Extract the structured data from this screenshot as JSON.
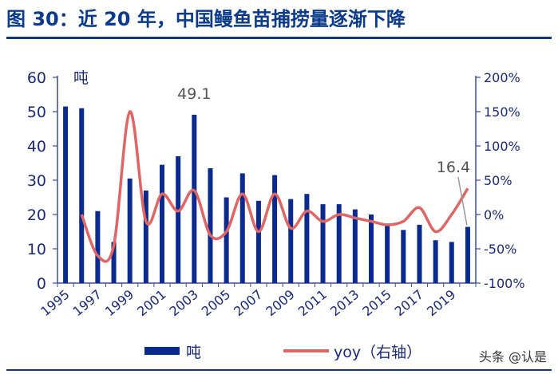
{
  "title": "图 30：近 20 年，中国鳗鱼苗捕捞量逐渐下降",
  "watermark": "头条 @认是",
  "colors": {
    "bar": "#0a2a8f",
    "line": "#e06666",
    "axis": "#3a4aa0",
    "title": "#0a3a8c"
  },
  "chart_data": {
    "type": "bar",
    "left_axis_unit": "吨",
    "ylim_left": [
      0,
      60
    ],
    "yticks_left": [
      0,
      10,
      20,
      30,
      40,
      50,
      60
    ],
    "ylim_right": [
      -100,
      200
    ],
    "yticks_right": [
      "-100%",
      "-50%",
      "0%",
      "50%",
      "100%",
      "150%",
      "200%"
    ],
    "yticks_right_values": [
      -100,
      -50,
      0,
      50,
      100,
      150,
      200
    ],
    "x": [
      1995,
      1996,
      1997,
      1998,
      1999,
      2000,
      2001,
      2002,
      2003,
      2004,
      2005,
      2006,
      2007,
      2008,
      2009,
      2010,
      2011,
      2012,
      2013,
      2014,
      2015,
      2016,
      2017,
      2018,
      2019,
      2020
    ],
    "xtick_labels": [
      "1995",
      "1997",
      "1999",
      "2001",
      "2003",
      "2005",
      "2007",
      "2009",
      "2011",
      "2013",
      "2015",
      "2017",
      "2019"
    ],
    "series": [
      {
        "name": "吨",
        "kind": "bar",
        "axis": "left",
        "values": [
          51.5,
          51.0,
          21.0,
          12.0,
          30.5,
          27.0,
          34.5,
          37.0,
          49.1,
          33.5,
          25.0,
          32.0,
          24.0,
          31.5,
          24.5,
          26.0,
          23.0,
          23.0,
          21.5,
          20.0,
          17.0,
          15.5,
          17.0,
          12.5,
          12.0,
          16.4
        ]
      },
      {
        "name": "yoy（右轴）",
        "kind": "line",
        "axis": "right",
        "values": [
          null,
          0,
          -60,
          -45,
          150,
          -10,
          30,
          5,
          35,
          -30,
          -25,
          30,
          -25,
          30,
          -20,
          5,
          -10,
          0,
          -5,
          -10,
          -15,
          -10,
          10,
          -25,
          0,
          38
        ]
      }
    ],
    "annotations": [
      {
        "text": "49.1",
        "x": 2003,
        "value": 49.1
      },
      {
        "text": "16.4",
        "x": 2020,
        "value": 16.4
      }
    ]
  }
}
